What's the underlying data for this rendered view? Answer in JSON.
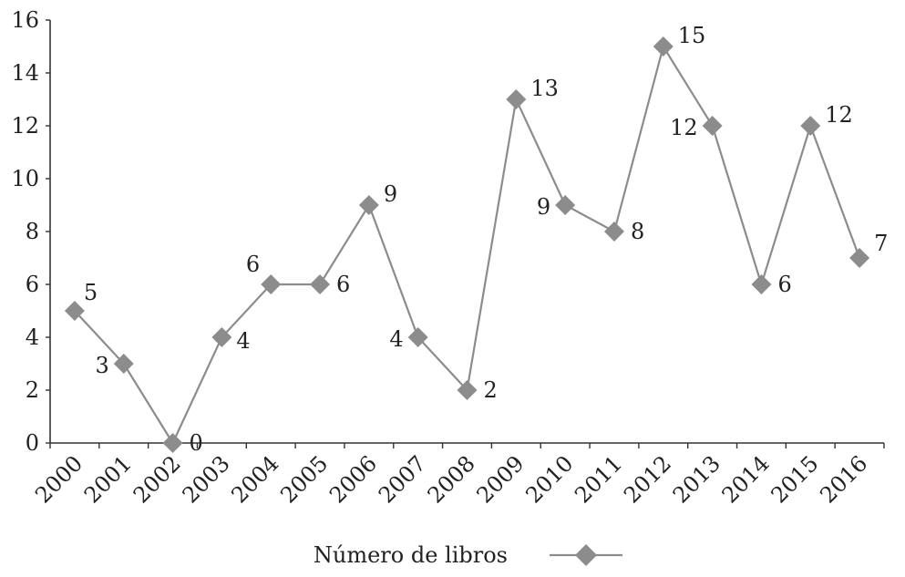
{
  "chart_data": {
    "type": "line",
    "title": "",
    "xlabel": "",
    "ylabel": "",
    "categories": [
      "2000",
      "2001",
      "2002",
      "2003",
      "2004",
      "2005",
      "2006",
      "2007",
      "2008",
      "2009",
      "2010",
      "2011",
      "2012",
      "2013",
      "2014",
      "2015",
      "2016"
    ],
    "series": [
      {
        "name": "Número de libros",
        "values": [
          5,
          3,
          0,
          4,
          6,
          6,
          9,
          4,
          2,
          13,
          9,
          8,
          15,
          12,
          6,
          12,
          7
        ],
        "color": "#8c8c8c",
        "marker": "diamond"
      }
    ],
    "ylim": [
      0,
      16
    ],
    "yticks": [
      0,
      2,
      4,
      6,
      8,
      10,
      12,
      14,
      16
    ],
    "grid": false,
    "legend": "bottom-center",
    "data_labels": true
  }
}
